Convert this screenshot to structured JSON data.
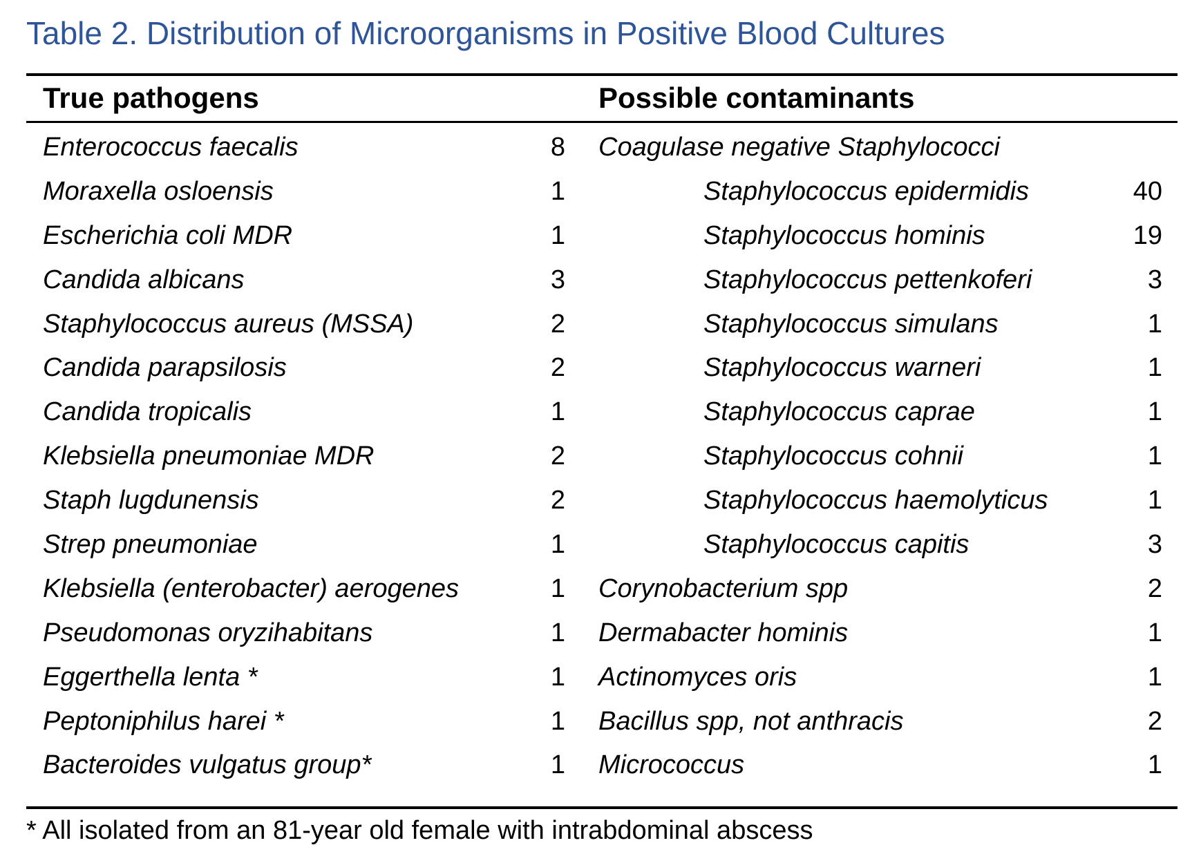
{
  "title": "Table 2. Distribution of Microorganisms in Positive Blood Cultures",
  "colors": {
    "title": "#2e5597",
    "rules": "#000000"
  },
  "headers": {
    "left": "True pathogens",
    "right": "Possible contaminants"
  },
  "rows": [
    {
      "left_name": "Enterococcus faecalis",
      "left_count": "8",
      "right_name": "Coagulase negative Staphylococci",
      "right_count": "",
      "right_indent": false
    },
    {
      "left_name": "Moraxella osloensis",
      "left_count": "1",
      "right_name": "Staphylococcus epidermidis",
      "right_count": "40",
      "right_indent": true
    },
    {
      "left_name": "Escherichia coli MDR",
      "left_count": "1",
      "right_name": "Staphylococcus hominis",
      "right_count": "19",
      "right_indent": true
    },
    {
      "left_name": "Candida albicans",
      "left_count": "3",
      "right_name": "Staphylococcus pettenkoferi",
      "right_count": "3",
      "right_indent": true
    },
    {
      "left_name": "Staphylococcus aureus (MSSA)",
      "left_count": "2",
      "right_name": "Staphylococcus simulans",
      "right_count": "1",
      "right_indent": true
    },
    {
      "left_name": "Candida parapsilosis",
      "left_count": "2",
      "right_name": "Staphylococcus warneri",
      "right_count": "1",
      "right_indent": true
    },
    {
      "left_name": "Candida tropicalis",
      "left_count": "1",
      "right_name": "Staphylococcus caprae",
      "right_count": "1",
      "right_indent": true
    },
    {
      "left_name": "Klebsiella pneumoniae MDR",
      "left_count": "2",
      "right_name": "Staphylococcus cohnii",
      "right_count": "1",
      "right_indent": true
    },
    {
      "left_name": "Staph lugdunensis",
      "left_count": "2",
      "right_name": "Staphylococcus haemolyticus",
      "right_count": "1",
      "right_indent": true
    },
    {
      "left_name": "Strep pneumoniae",
      "left_count": "1",
      "right_name": "Staphylococcus capitis",
      "right_count": "3",
      "right_indent": true
    },
    {
      "left_name": "Klebsiella (enterobacter) aerogenes",
      "left_count": "1",
      "right_name": "Corynobacterium spp",
      "right_count": "2",
      "right_indent": false
    },
    {
      "left_name": "Pseudomonas oryzihabitans",
      "left_count": "1",
      "right_name": "Dermabacter hominis",
      "right_count": "1",
      "right_indent": false
    },
    {
      "left_name": "Eggerthella lenta *",
      "left_count": "1",
      "right_name": "Actinomyces oris",
      "right_count": "1",
      "right_indent": false
    },
    {
      "left_name": "Peptoniphilus harei *",
      "left_count": "1",
      "right_name": "Bacillus spp, not anthracis",
      "right_count": "2",
      "right_indent": false
    },
    {
      "left_name": "Bacteroides vulgatus group*",
      "left_count": "1",
      "right_name": "Micrococcus",
      "right_count": "1",
      "right_indent": false
    }
  ],
  "footnote": "* All isolated from an 81-year old female with intrabdominal abscess"
}
